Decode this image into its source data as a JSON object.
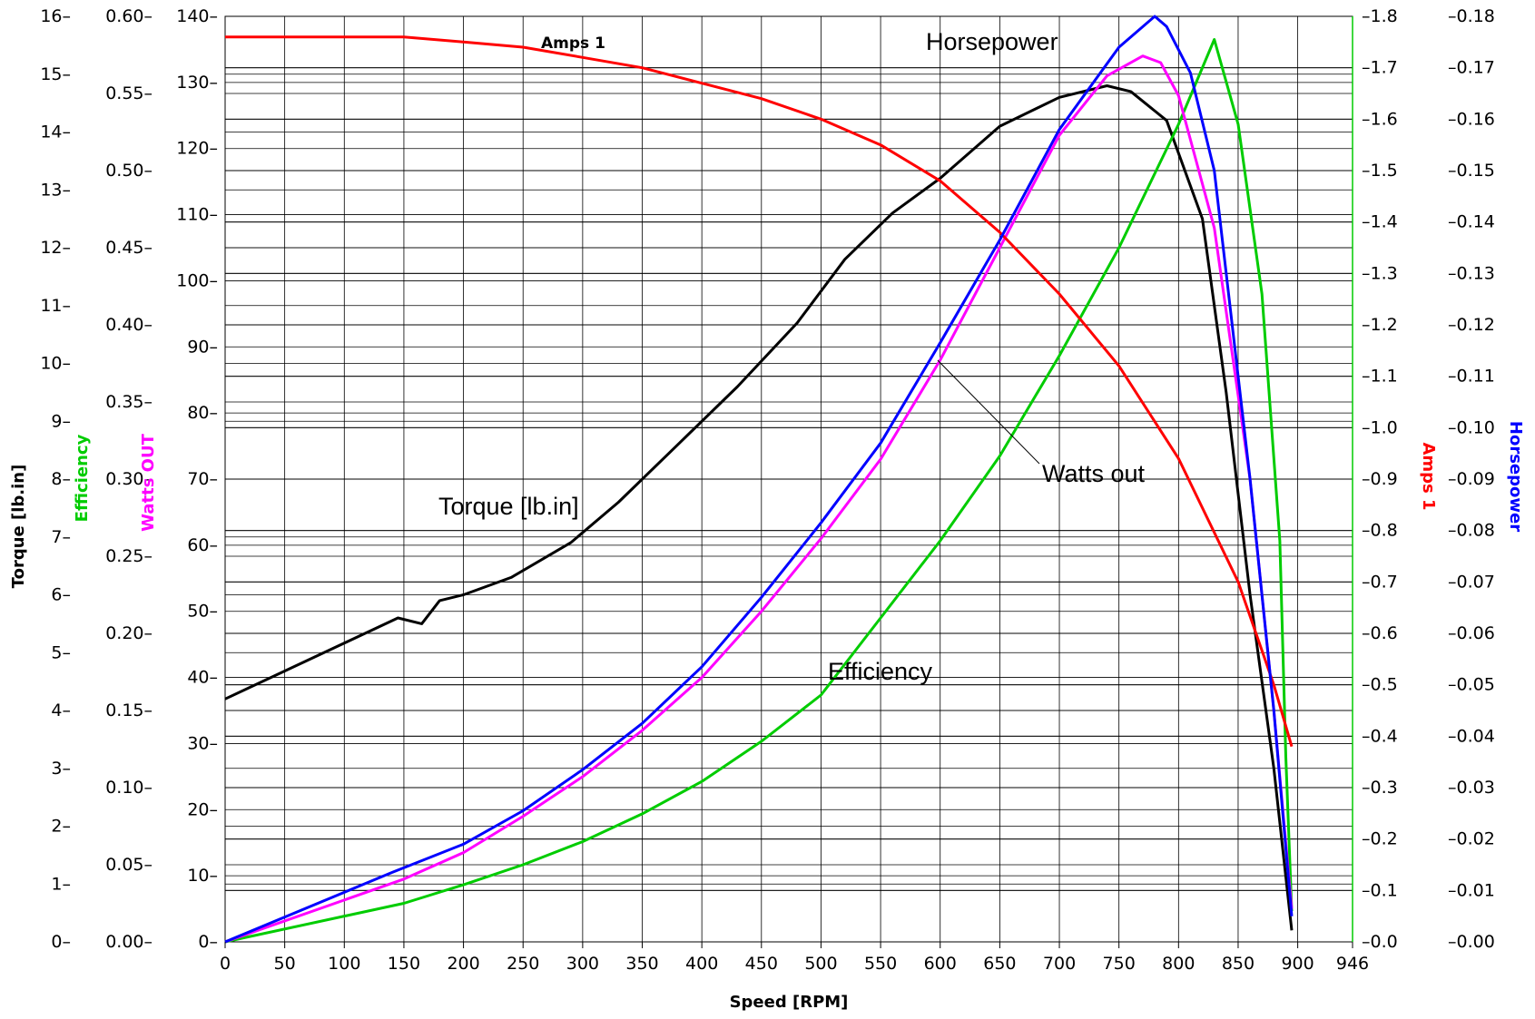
{
  "chart_data": {
    "type": "line",
    "title": "",
    "grid": true,
    "x_axis": {
      "label": "Speed [RPM]",
      "range": [
        0,
        946
      ],
      "ticks": [
        "0",
        "50",
        "100",
        "150",
        "200",
        "250",
        "300",
        "350",
        "400",
        "450",
        "500",
        "550",
        "600",
        "650",
        "700",
        "750",
        "800",
        "850",
        "900",
        "946"
      ],
      "tick_values": [
        0,
        50,
        100,
        150,
        200,
        250,
        300,
        350,
        400,
        450,
        500,
        550,
        600,
        650,
        700,
        750,
        800,
        850,
        900,
        946
      ]
    },
    "y_axes": [
      {
        "id": "torque",
        "label": "Torque [lb.in]",
        "side": "left",
        "range": [
          0,
          16
        ],
        "color": "#000000",
        "ticks": [
          "0",
          "1",
          "2",
          "3",
          "4",
          "5",
          "6",
          "7",
          "8",
          "9",
          "10",
          "11",
          "12",
          "13",
          "14",
          "15",
          "16"
        ]
      },
      {
        "id": "efficiency",
        "label": "Efficiency",
        "side": "left",
        "range": [
          0,
          0.6
        ],
        "color": "#00cc00",
        "ticks": [
          "0.00",
          "0.05",
          "0.10",
          "0.15",
          "0.20",
          "0.25",
          "0.30",
          "0.35",
          "0.40",
          "0.45",
          "0.50",
          "0.55",
          "0.60"
        ]
      },
      {
        "id": "watts",
        "label": "Watts OUT",
        "side": "left",
        "range": [
          0,
          140
        ],
        "color": "#ff00ff",
        "ticks": [
          "0",
          "10",
          "20",
          "30",
          "40",
          "50",
          "60",
          "70",
          "80",
          "90",
          "100",
          "110",
          "120",
          "130",
          "140"
        ]
      },
      {
        "id": "amps",
        "label": "Amps 1",
        "side": "right",
        "range": [
          0,
          1.8
        ],
        "color": "#ff0000",
        "ticks": [
          "0.0",
          "0.1",
          "0.2",
          "0.3",
          "0.4",
          "0.5",
          "0.6",
          "0.7",
          "0.8",
          "0.9",
          "1.0",
          "1.1",
          "1.2",
          "1.3",
          "1.4",
          "1.5",
          "1.6",
          "1.7",
          "1.8"
        ]
      },
      {
        "id": "hp",
        "label": "Horsepower",
        "side": "right",
        "range": [
          0,
          0.18
        ],
        "color": "#0000ff",
        "ticks": [
          "0.00",
          "0.01",
          "0.02",
          "0.03",
          "0.04",
          "0.05",
          "0.06",
          "0.07",
          "0.08",
          "0.09",
          "0.10",
          "0.11",
          "0.12",
          "0.13",
          "0.14",
          "0.15",
          "0.16",
          "0.17",
          "0.18"
        ]
      }
    ],
    "series": [
      {
        "name": "Torque [lb.in]",
        "axis": "torque",
        "color": "#000000",
        "x": [
          0,
          145,
          165,
          180,
          200,
          240,
          290,
          330,
          380,
          430,
          480,
          520,
          560,
          600,
          650,
          700,
          740,
          760,
          790,
          820,
          840,
          860,
          880,
          895
        ],
        "y": [
          4.2,
          5.6,
          5.5,
          5.9,
          6.0,
          6.3,
          6.9,
          7.6,
          8.6,
          9.6,
          10.7,
          11.8,
          12.6,
          13.2,
          14.1,
          14.6,
          14.8,
          14.7,
          14.2,
          12.5,
          9.5,
          6.0,
          3.0,
          0.2
        ]
      },
      {
        "name": "Efficiency",
        "axis": "efficiency",
        "color": "#00cc00",
        "x": [
          0,
          150,
          200,
          250,
          300,
          350,
          400,
          450,
          500,
          550,
          600,
          650,
          700,
          750,
          800,
          830,
          850,
          870,
          885,
          890,
          895
        ],
        "y": [
          0,
          0.025,
          0.037,
          0.05,
          0.065,
          0.083,
          0.104,
          0.13,
          0.16,
          0.21,
          0.26,
          0.315,
          0.38,
          0.45,
          0.53,
          0.585,
          0.53,
          0.42,
          0.26,
          0.12,
          0.02
        ]
      },
      {
        "name": "Watts OUT",
        "axis": "watts",
        "color": "#ff00ff",
        "x": [
          0,
          150,
          200,
          250,
          300,
          350,
          400,
          450,
          500,
          550,
          600,
          650,
          700,
          740,
          770,
          785,
          800,
          830,
          860,
          880,
          895
        ],
        "y": [
          0,
          9.5,
          13.5,
          19,
          25,
          32,
          40,
          50,
          61,
          73,
          88,
          105,
          122,
          131,
          134,
          133,
          128,
          108,
          70,
          35,
          5
        ]
      },
      {
        "name": "Amps 1",
        "axis": "amps",
        "color": "#ff0000",
        "x": [
          0,
          150,
          200,
          250,
          300,
          350,
          400,
          450,
          500,
          550,
          600,
          650,
          700,
          750,
          800,
          850,
          880,
          895
        ],
        "y": [
          1.76,
          1.76,
          1.75,
          1.74,
          1.72,
          1.7,
          1.67,
          1.64,
          1.6,
          1.55,
          1.48,
          1.38,
          1.26,
          1.12,
          0.94,
          0.7,
          0.5,
          0.38
        ]
      },
      {
        "name": "Horsepower",
        "axis": "hp",
        "color": "#0000ff",
        "x": [
          0,
          140,
          200,
          250,
          300,
          350,
          400,
          450,
          500,
          550,
          600,
          650,
          700,
          750,
          780,
          790,
          810,
          830,
          860,
          880,
          895
        ],
        "y": [
          0,
          0.0135,
          0.019,
          0.0255,
          0.0335,
          0.0425,
          0.0535,
          0.067,
          0.0815,
          0.097,
          0.1165,
          0.1365,
          0.158,
          0.174,
          0.18,
          0.178,
          0.169,
          0.15,
          0.09,
          0.045,
          0.005
        ]
      }
    ],
    "annotations": {
      "horsepower": "Horsepower",
      "torque": "Torque [lb.in]",
      "watts": "Watts out",
      "efficiency": "Efficiency",
      "amps": "Amps 1"
    }
  }
}
